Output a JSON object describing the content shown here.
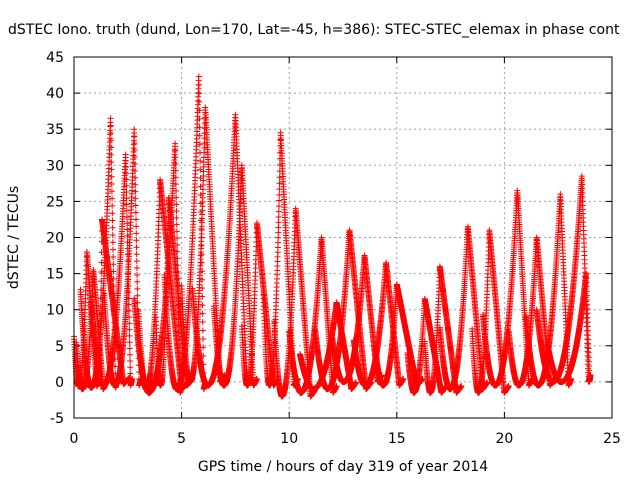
{
  "chart_data": {
    "type": "scatter",
    "title": "dSTEC Iono. truth (dund, Lon=170, Lat=-45, h=386): STEC-STEC_elemax in phase cont",
    "xlabel": "GPS time / hours of day 319 of year 2014",
    "ylabel": "dSTEC  / TECUs",
    "xlim": [
      0,
      25
    ],
    "ylim": [
      -5,
      45
    ],
    "xticks": [
      0,
      5,
      10,
      15,
      20,
      25
    ],
    "yticks": [
      -5,
      0,
      5,
      10,
      15,
      20,
      25,
      30,
      35,
      40,
      45
    ],
    "grid": true,
    "marker": "+",
    "color": "#ff0000",
    "passes": [
      {
        "start": 0.0,
        "peak": 0.6,
        "end": 1.2,
        "max": 18,
        "min": -0.6
      },
      {
        "start": 0.3,
        "peak": 1.7,
        "end": 2.0,
        "max": 36.5,
        "min": -0.8
      },
      {
        "start": 0.8,
        "peak": 2.4,
        "end": 2.7,
        "max": 31.5,
        "min": -0.5
      },
      {
        "start": 1.4,
        "peak": 2.8,
        "end": 3.1,
        "max": 35,
        "min": -0.5
      },
      {
        "start": 1.0,
        "peak": 1.3,
        "end": 2.6,
        "max": 22.5,
        "min": -0.3
      },
      {
        "start": 0.1,
        "peak": 0.9,
        "end": 1.5,
        "max": 15.5,
        "min": -1.0
      },
      {
        "start": 2.8,
        "peak": 4.7,
        "end": 5.0,
        "max": 33,
        "min": -1.5
      },
      {
        "start": 3.0,
        "peak": 4.0,
        "end": 5.3,
        "max": 28,
        "min": -1.0
      },
      {
        "start": 4.2,
        "peak": 5.8,
        "end": 6.1,
        "max": 42.3,
        "min": -1.0
      },
      {
        "start": 3.8,
        "peak": 4.4,
        "end": 5.5,
        "max": 25.5,
        "min": -0.5
      },
      {
        "start": 5.0,
        "peak": 6.1,
        "end": 7.0,
        "max": 38,
        "min": 0.0
      },
      {
        "start": 5.5,
        "peak": 7.5,
        "end": 8.2,
        "max": 37,
        "min": -0.5
      },
      {
        "start": 6.5,
        "peak": 7.8,
        "end": 8.5,
        "max": 30,
        "min": -0.5
      },
      {
        "start": 7.8,
        "peak": 8.5,
        "end": 9.5,
        "max": 22,
        "min": -0.5
      },
      {
        "start": 8.8,
        "peak": 9.6,
        "end": 10.4,
        "max": 34.5,
        "min": -0.5
      },
      {
        "start": 9.3,
        "peak": 10.3,
        "end": 11.2,
        "max": 24,
        "min": -2.0
      },
      {
        "start": 10.0,
        "peak": 11.5,
        "end": 12.2,
        "max": 20,
        "min": -1.5
      },
      {
        "start": 10.5,
        "peak": 12.2,
        "end": 13.1,
        "max": 11,
        "min": -1.0
      },
      {
        "start": 11.2,
        "peak": 12.8,
        "end": 13.8,
        "max": 21,
        "min": -1.0
      },
      {
        "start": 12.0,
        "peak": 13.5,
        "end": 14.3,
        "max": 17.5,
        "min": 0.0
      },
      {
        "start": 13.0,
        "peak": 14.5,
        "end": 15.3,
        "max": 16.5,
        "min": -0.5
      },
      {
        "start": 14.0,
        "peak": 15.0,
        "end": 16.2,
        "max": 13.5,
        "min": -0.5
      },
      {
        "start": 15.5,
        "peak": 16.3,
        "end": 17.3,
        "max": 11.5,
        "min": -1.5
      },
      {
        "start": 16.3,
        "peak": 17.0,
        "end": 18.0,
        "max": 16,
        "min": -1.5
      },
      {
        "start": 17.0,
        "peak": 18.3,
        "end": 19.2,
        "max": 21.5,
        "min": -1.0
      },
      {
        "start": 18.5,
        "peak": 19.3,
        "end": 20.2,
        "max": 21,
        "min": -1.5
      },
      {
        "start": 19.0,
        "peak": 20.6,
        "end": 21.3,
        "max": 26.5,
        "min": -0.5
      },
      {
        "start": 20.2,
        "peak": 21.5,
        "end": 22.3,
        "max": 20,
        "min": -0.5
      },
      {
        "start": 21.0,
        "peak": 22.6,
        "end": 23.1,
        "max": 26,
        "min": -0.5
      },
      {
        "start": 21.5,
        "peak": 23.6,
        "end": 24.0,
        "max": 28.5,
        "min": 0.0
      },
      {
        "start": 22.0,
        "peak": 23.8,
        "end": 24.0,
        "max": 15,
        "min": 0.0
      }
    ]
  }
}
